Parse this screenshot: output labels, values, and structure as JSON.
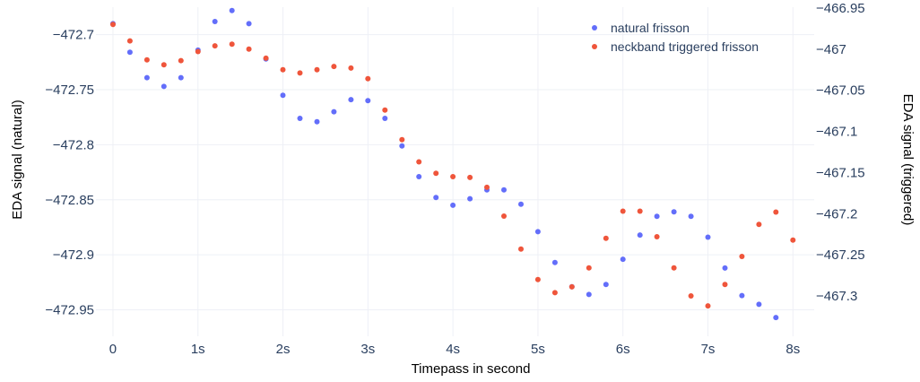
{
  "chart_data": {
    "type": "scatter",
    "xlabel": "Timepass in second",
    "ylabel_left": "EDA signal (natural)",
    "ylabel_right": "EDA signal (triggered)",
    "x_ticks": [
      {
        "value": 0,
        "label": "0"
      },
      {
        "value": 1,
        "label": "1s"
      },
      {
        "value": 2,
        "label": "2s"
      },
      {
        "value": 3,
        "label": "3s"
      },
      {
        "value": 4,
        "label": "4s"
      },
      {
        "value": 5,
        "label": "5s"
      },
      {
        "value": 6,
        "label": "6s"
      },
      {
        "value": 7,
        "label": "7s"
      },
      {
        "value": 8,
        "label": "8s"
      }
    ],
    "y_left_ticks": [
      {
        "value": -472.7,
        "label": "−472.7"
      },
      {
        "value": -472.75,
        "label": "−472.75"
      },
      {
        "value": -472.8,
        "label": "−472.8"
      },
      {
        "value": -472.85,
        "label": "−472.85"
      },
      {
        "value": -472.9,
        "label": "−472.9"
      },
      {
        "value": -472.95,
        "label": "−472.95"
      }
    ],
    "y_right_ticks": [
      {
        "value": -466.95,
        "label": "−466.95"
      },
      {
        "value": -467.0,
        "label": "−467"
      },
      {
        "value": -467.05,
        "label": "−467.05"
      },
      {
        "value": -467.1,
        "label": "−467.1"
      },
      {
        "value": -467.15,
        "label": "−467.15"
      },
      {
        "value": -467.2,
        "label": "−467.2"
      },
      {
        "value": -467.25,
        "label": "−467.25"
      },
      {
        "value": -467.3,
        "label": "−467.3"
      }
    ],
    "xlim": [
      -0.2,
      8.25
    ],
    "ylim_left": [
      -472.974,
      -472.675
    ],
    "ylim_right": [
      -467.349,
      -466.949
    ],
    "grid": true,
    "legend_position": "top-right",
    "series": [
      {
        "name": "natural frisson",
        "color": "#636efa",
        "axis": "left",
        "x": [
          0,
          0.2,
          0.4,
          0.6,
          0.8,
          1.0,
          1.2,
          1.4,
          1.6,
          1.8,
          2.0,
          2.2,
          2.4,
          2.6,
          2.8,
          3.0,
          3.2,
          3.4,
          3.6,
          3.8,
          4.0,
          4.2,
          4.4,
          4.6,
          4.8,
          5.0,
          5.2,
          5.4,
          5.6,
          5.8,
          6.0,
          6.2,
          6.4,
          6.6,
          6.8,
          7.0,
          7.2,
          7.4,
          7.6,
          7.8
        ],
        "y": [
          -472.69,
          -472.716,
          -472.739,
          -472.747,
          -472.739,
          -472.714,
          -472.688,
          -472.678,
          -472.69,
          -472.722,
          -472.755,
          -472.776,
          -472.779,
          -472.77,
          -472.759,
          -472.76,
          -472.776,
          -472.801,
          -472.829,
          -472.848,
          -472.855,
          -472.849,
          -472.841,
          -472.841,
          -472.854,
          -472.879,
          -472.907,
          -472.929,
          -472.936,
          -472.927,
          -472.904,
          -472.882,
          -472.865,
          -472.861,
          -472.865,
          -472.884,
          -472.912,
          -472.937,
          -472.945,
          -472.957
        ]
      },
      {
        "name": "neckband triggered frisson",
        "color": "#ef553b",
        "axis": "right",
        "x": [
          0,
          0.2,
          0.4,
          0.6,
          0.8,
          1.0,
          1.2,
          1.4,
          1.6,
          1.8,
          2.0,
          2.2,
          2.4,
          2.6,
          2.8,
          3.0,
          3.2,
          3.4,
          3.6,
          3.8,
          4.0,
          4.2,
          4.4,
          4.6,
          4.8,
          5.0,
          5.2,
          5.4,
          5.6,
          5.8,
          6.0,
          6.2,
          6.4,
          6.6,
          6.8,
          7.0,
          7.2,
          7.4,
          7.6,
          7.8,
          8.0
        ],
        "y": [
          -466.97,
          -466.99,
          -467.013,
          -467.019,
          -467.014,
          -467.003,
          -466.996,
          -466.994,
          -467.0,
          -467.011,
          -467.025,
          -467.029,
          -467.025,
          -467.021,
          -467.023,
          -467.036,
          -467.074,
          -467.11,
          -467.137,
          -467.151,
          -467.155,
          -467.156,
          -467.168,
          -467.203,
          -467.243,
          -467.28,
          -467.296,
          -467.289,
          -467.266,
          -467.23,
          -467.197,
          -467.197,
          -467.228,
          -467.266,
          -467.3,
          -467.312,
          -467.286,
          -467.252,
          -467.213,
          -467.198,
          -467.232
        ]
      }
    ]
  }
}
